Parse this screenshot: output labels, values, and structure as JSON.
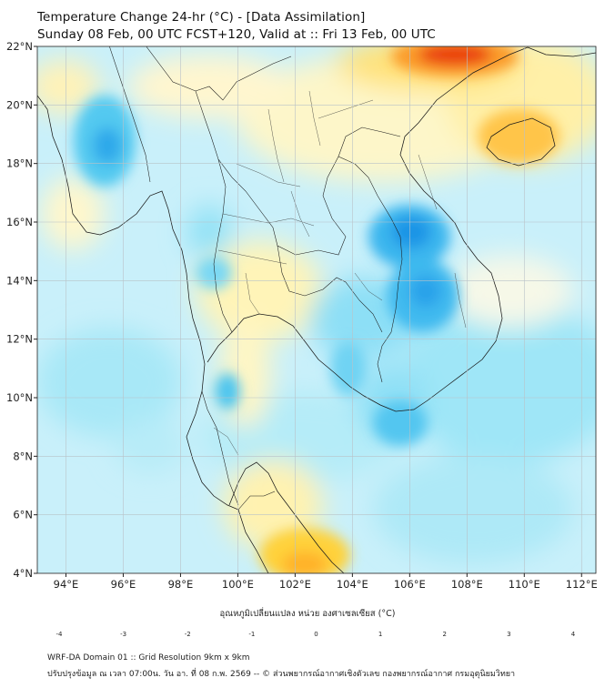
{
  "header": {
    "title_line1": "Temperature Change 24-hr (°C) - [Data Assimilation]",
    "title_line2": "Sunday 08 Feb, 00 UTC FCST+120, Valid at :: Fri 13 Feb, 00 UTC"
  },
  "map": {
    "lat_range": [
      4,
      22
    ],
    "lon_range": [
      93,
      112.5
    ],
    "lat_labels": [
      "4°N",
      "6°N",
      "8°N",
      "10°N",
      "12°N",
      "14°N",
      "16°N",
      "18°N",
      "20°N",
      "22°N"
    ],
    "lon_labels": [
      "94°E",
      "96°E",
      "98°E",
      "100°E",
      "102°E",
      "104°E",
      "106°E",
      "108°E",
      "110°E",
      "112°E"
    ],
    "anomalies": [
      {
        "lon": 95.8,
        "lat": 18.8,
        "value": -1.6
      },
      {
        "lon": 105.8,
        "lat": 15.9,
        "value": -1.6
      },
      {
        "lon": 106.0,
        "lat": 14.0,
        "value": -1.4
      },
      {
        "lon": 108.0,
        "lat": 21.8,
        "value": 2.8
      },
      {
        "lon": 110.0,
        "lat": 19.2,
        "value": 2.0
      },
      {
        "lon": 102.2,
        "lat": 4.6,
        "value": 1.9
      }
    ]
  },
  "colorbar": {
    "label": "อุณหภูมิเปลี่ยนแปลง หน่วย องศาเซลเซียส (°C)",
    "min": -4,
    "max": 4,
    "ticks": [
      "-4",
      "-3",
      "-2",
      "-1",
      "0",
      "1",
      "2",
      "3",
      "4"
    ]
  },
  "footer": {
    "line1": "WRF-DA Domain 01 :: Grid Resolution 9km x 9km",
    "line2": "ปรับปรุงข้อมูล ณ เวลา 07:00น. วัน อา. ที่ 08 ก.พ. 2569 -- © ส่วนพยากรณ์อากาศเชิงตัวเลข กองพยากรณ์อากาศ กรมอุตุนิยมวิทยา"
  }
}
